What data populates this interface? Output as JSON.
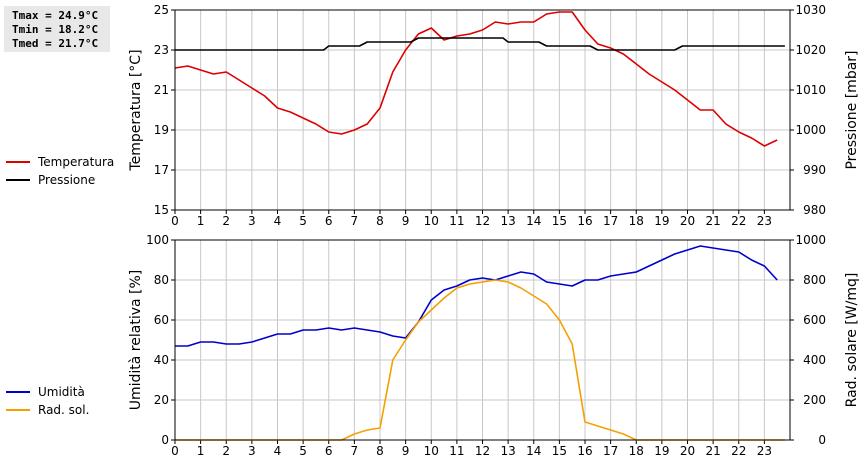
{
  "stats": {
    "tmax": "Tmax = 24.9°C",
    "tmin": "Tmin = 18.2°C",
    "tmed": "Tmed = 21.7°C"
  },
  "colors": {
    "temperature": "#dd0000",
    "pressure": "#000000",
    "humidity": "#0000cc",
    "radiation": "#f5a000",
    "grid": "#c8c8c8"
  },
  "chart_data": [
    {
      "type": "line",
      "x_ticks": [
        "0",
        "1",
        "2",
        "3",
        "4",
        "5",
        "6",
        "7",
        "8",
        "9",
        "10",
        "11",
        "12",
        "13",
        "14",
        "15",
        "16",
        "17",
        "18",
        "19",
        "20",
        "21",
        "22",
        "23"
      ],
      "xlim": [
        0,
        24
      ],
      "ylabel": "Temperatura [°C]",
      "y2label": "Pressione [mbar]",
      "ylim": [
        15,
        25
      ],
      "y_ticks": [
        "15",
        "17",
        "19",
        "21",
        "23",
        "25"
      ],
      "y2lim": [
        980,
        1030
      ],
      "y2_ticks": [
        "980",
        "990",
        "1000",
        "1010",
        "1020",
        "1030"
      ],
      "grid": true,
      "legend_position": "left",
      "series": [
        {
          "name": "Temperatura",
          "axis": "left",
          "x": [
            0,
            0.5,
            1,
            1.5,
            2,
            2.5,
            3,
            3.5,
            4,
            4.5,
            5,
            5.5,
            6,
            6.5,
            7,
            7.5,
            8,
            8.5,
            9,
            9.5,
            10,
            10.5,
            11,
            11.5,
            12,
            12.5,
            13,
            13.5,
            14,
            14.5,
            15,
            15.5,
            16,
            16.5,
            17,
            17.5,
            18,
            18.5,
            19,
            19.5,
            20,
            20.5,
            21,
            21.5,
            22,
            22.5,
            23,
            23.5
          ],
          "y": [
            22.1,
            22.2,
            22.0,
            21.8,
            21.9,
            21.5,
            21.1,
            20.7,
            20.1,
            19.9,
            19.6,
            19.3,
            18.9,
            18.8,
            19.0,
            19.3,
            20.1,
            21.9,
            23.0,
            23.8,
            24.1,
            23.5,
            23.7,
            23.8,
            24.0,
            24.4,
            24.3,
            24.4,
            24.4,
            24.8,
            24.9,
            24.9,
            24.0,
            23.3,
            23.1,
            22.8,
            22.3,
            21.8,
            21.4,
            21.0,
            20.5,
            20.0,
            20.0,
            19.3,
            18.9,
            18.6,
            18.2,
            18.5
          ]
        },
        {
          "name": "Pressione",
          "axis": "right",
          "x": [
            0,
            5.8,
            6,
            7.2,
            7.5,
            9.2,
            9.5,
            12.8,
            13,
            14.2,
            14.5,
            16.2,
            16.5,
            19.5,
            19.8,
            23.8
          ],
          "y": [
            1020,
            1020,
            1021,
            1021,
            1022,
            1022,
            1023,
            1023,
            1022,
            1022,
            1021,
            1021,
            1020,
            1020,
            1021,
            1021
          ]
        }
      ]
    },
    {
      "type": "line",
      "x_ticks": [
        "0",
        "1",
        "2",
        "3",
        "4",
        "5",
        "6",
        "7",
        "8",
        "9",
        "10",
        "11",
        "12",
        "13",
        "14",
        "15",
        "16",
        "17",
        "18",
        "19",
        "20",
        "21",
        "22",
        "23"
      ],
      "xlim": [
        0,
        24
      ],
      "ylabel": "Umidità relativa [%]",
      "y2label": "Rad. solare [W/mq]",
      "ylim": [
        0,
        100
      ],
      "y_ticks": [
        "0",
        "20",
        "40",
        "60",
        "80",
        "100"
      ],
      "y2lim": [
        0,
        1000
      ],
      "y2_ticks": [
        "0",
        "200",
        "400",
        "600",
        "800",
        "1000"
      ],
      "grid": true,
      "legend_position": "left",
      "series": [
        {
          "name": "Umidità",
          "axis": "left",
          "x": [
            0,
            0.5,
            1,
            1.5,
            2,
            2.5,
            3,
            3.5,
            4,
            4.5,
            5,
            5.5,
            6,
            6.5,
            7,
            7.5,
            8,
            8.5,
            9,
            9.5,
            10,
            10.5,
            11,
            11.5,
            12,
            12.5,
            13,
            13.5,
            14,
            14.5,
            15,
            15.5,
            16,
            16.5,
            17,
            17.5,
            18,
            18.5,
            19,
            19.5,
            20,
            20.5,
            21,
            21.5,
            22,
            22.5,
            23,
            23.5
          ],
          "y": [
            47,
            47,
            49,
            49,
            48,
            48,
            49,
            51,
            53,
            53,
            55,
            55,
            56,
            55,
            56,
            55,
            54,
            52,
            51,
            59,
            70,
            75,
            77,
            80,
            81,
            80,
            82,
            84,
            83,
            79,
            78,
            77,
            80,
            80,
            82,
            83,
            84,
            87,
            90,
            93,
            95,
            97,
            96,
            95,
            94,
            90,
            87,
            80
          ]
        },
        {
          "name": "Rad. sol.",
          "axis": "right",
          "x": [
            0,
            6.5,
            7,
            7.5,
            8,
            8.5,
            9,
            9.5,
            10,
            10.5,
            11,
            11.5,
            12,
            12.5,
            13,
            13.5,
            14,
            14.5,
            15,
            15.5,
            16,
            16.5,
            17,
            17.5,
            18,
            23.8
          ],
          "y": [
            0,
            0,
            30,
            50,
            60,
            400,
            500,
            590,
            650,
            710,
            760,
            780,
            790,
            800,
            790,
            760,
            720,
            680,
            600,
            480,
            90,
            70,
            50,
            30,
            0,
            0
          ]
        }
      ]
    }
  ]
}
